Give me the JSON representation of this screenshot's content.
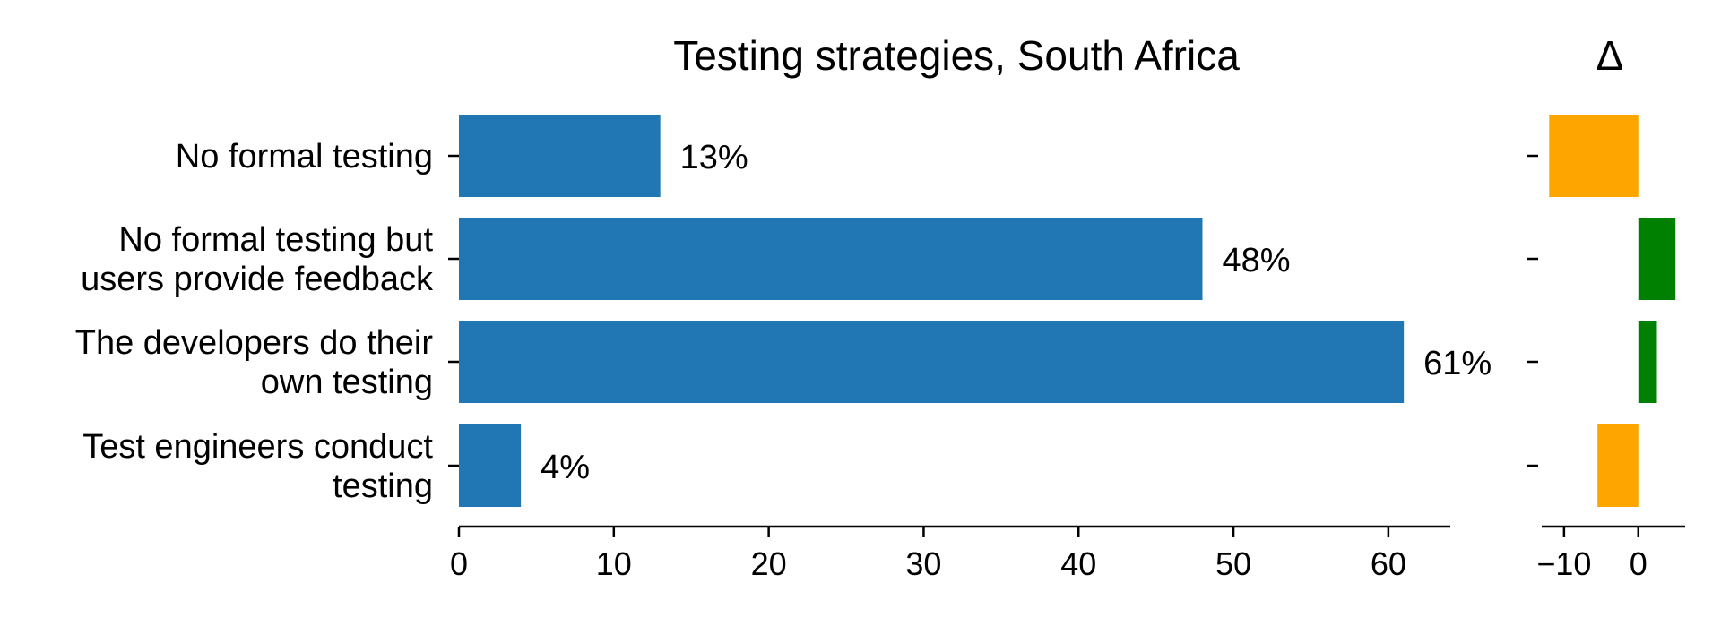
{
  "chart_data": {
    "type": "bar",
    "orientation": "horizontal",
    "title": "Testing strategies, South Africa",
    "delta_title": "Δ",
    "categories": [
      [
        "No formal testing"
      ],
      [
        "No formal testing but",
        "users provide feedback"
      ],
      [
        "The developers do their",
        "own testing"
      ],
      [
        "Test engineers conduct",
        "testing"
      ]
    ],
    "values": [
      13,
      48,
      61,
      4
    ],
    "value_labels": [
      "13%",
      "48%",
      "61%",
      "4%"
    ],
    "xlim": [
      0,
      64
    ],
    "xticks": [
      0,
      10,
      20,
      30,
      40,
      50,
      60
    ],
    "xtick_labels": [
      "0",
      "10",
      "20",
      "30",
      "40",
      "50",
      "60"
    ],
    "delta": {
      "values": [
        -12,
        5,
        2.5,
        -5.5
      ],
      "xlim": [
        -13,
        6.3
      ],
      "xticks": [
        -10,
        0
      ],
      "xtick_labels": [
        "−10",
        "0"
      ]
    },
    "colors": {
      "bar": "#2077b4",
      "delta_negative": "#ffa500",
      "delta_positive": "#008000"
    }
  }
}
